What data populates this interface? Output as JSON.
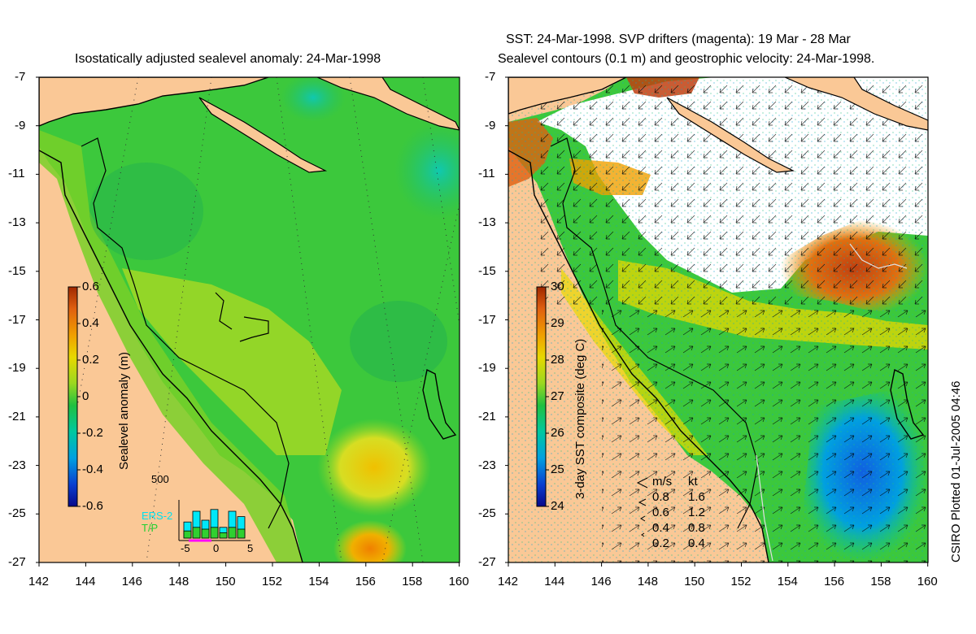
{
  "left_panel": {
    "title": "Isostatically adjusted sealevel anomaly: 24-Mar-1998",
    "colorbar": {
      "label": "Sealevel anomaly (m)",
      "ticks": [
        "0.6",
        "0.4",
        "0.2",
        "0",
        "-0.2",
        "-0.4",
        "-0.6"
      ],
      "colors": [
        "#08088a",
        "#0a3fd0",
        "#00a0e0",
        "#00c8a0",
        "#20c040",
        "#9ad820",
        "#e8d800",
        "#f0a000",
        "#e06010",
        "#a02800"
      ]
    },
    "histogram": {
      "ymax_label": "500",
      "legend": [
        "ERS-2",
        "T/P"
      ],
      "xticks": [
        "-5",
        "0",
        "5"
      ],
      "ers2_heights": [
        0.45,
        0.75,
        0.5,
        0.8,
        0.3,
        0.75,
        0.6
      ],
      "tp_heights": [
        0.2,
        0.3,
        0.25,
        0.3,
        0.15,
        0.3,
        0.25
      ]
    }
  },
  "right_panel": {
    "title_line1": "SST: 24-Mar-1998. SVP drifters (magenta): 19 Mar - 28 Mar",
    "title_line2": "Sealevel contours (0.1 m) and geostrophic velocity: 24-Mar-1998.",
    "colorbar": {
      "label": "3-day SST composite (deg C)",
      "ticks": [
        "30",
        "29",
        "28",
        "27",
        "26",
        "25",
        "24"
      ],
      "colors": [
        "#08088a",
        "#0a3fd0",
        "#00a0e0",
        "#00c8a0",
        "#20c040",
        "#9ad820",
        "#e8d800",
        "#f0a000",
        "#e06010",
        "#a02800"
      ]
    },
    "velocity_legend": {
      "headers": [
        "m/s",
        "kt"
      ],
      "rows": [
        [
          "0.8",
          "1.6"
        ],
        [
          "0.6",
          "1.2"
        ],
        [
          "0.4",
          "0.8"
        ],
        [
          "0.2",
          "0.4"
        ]
      ]
    }
  },
  "axes": {
    "lat_ticks": [
      "-7",
      "-9",
      "-11",
      "-13",
      "-15",
      "-17",
      "-19",
      "-21",
      "-23",
      "-25",
      "-27"
    ],
    "lon_ticks": [
      "142",
      "144",
      "146",
      "148",
      "150",
      "152",
      "154",
      "156",
      "158",
      "160"
    ]
  },
  "credit": "CSIRO Plotted 01-Jul-2005 04:46",
  "colors": {
    "land": "#fac896",
    "ocean_green": "#3cc83c",
    "coast": "#000000"
  }
}
